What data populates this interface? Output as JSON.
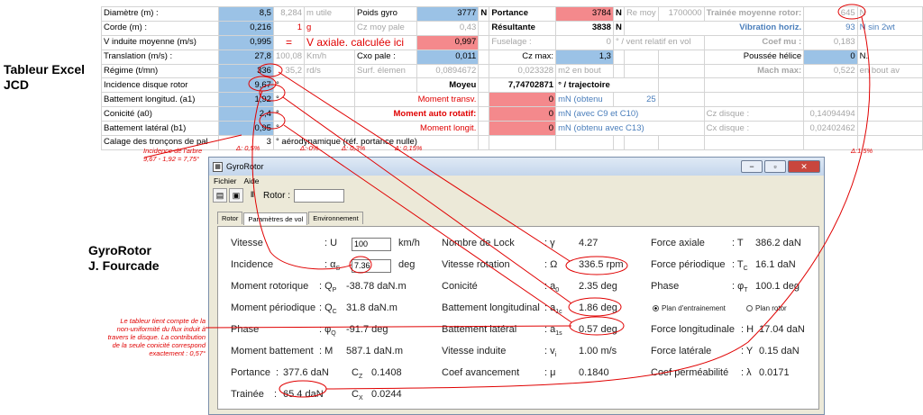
{
  "side": {
    "excel_l1": "Tableur Excel",
    "excel_l2": "JCD",
    "gyro_l1": "GyroRotor",
    "gyro_l2": "J. Fourcade"
  },
  "excel": {
    "r1": [
      "Diamètre  (m) :",
      "8,5",
      "8,284",
      "m utile",
      "Poids gyro",
      "3777",
      "N",
      "Portance",
      "3784",
      "N",
      "Re moy",
      "1700000",
      "Trainée moyenne rotor:",
      "645",
      "N"
    ],
    "r2": [
      "Corde (m) :",
      "0,216",
      "1",
      "g",
      "Cz moy pale",
      "0,43",
      "Résultante",
      "3838",
      "N",
      "Vibration horiz.",
      "93",
      "N sin 2wt"
    ],
    "r3": [
      "V induite  moyenne (m/s)",
      "0,995",
      "=",
      "V axiale. calculée ici",
      "0,997",
      "Fuselage :",
      "0",
      "° / vent relatif en vol",
      "Coef mu :",
      "0,183"
    ],
    "r4": [
      "Translation (m/s) :",
      "27,8",
      "100,08",
      "Km/h",
      "Cxo pale :",
      "0,011",
      "Cz max:",
      "1,3",
      "Poussée hélice",
      "0",
      "N."
    ],
    "r5": [
      "Régime (t/mn)",
      "336",
      "35,2",
      "rd/s",
      "Surf. élemen",
      "0,0894672",
      "0,023328",
      "m2 en  bout",
      "Mach max:",
      "0,522",
      "en bout av"
    ],
    "r6": [
      "Incidence disque rotor",
      "9,67",
      "°",
      "Moyeu",
      "7,74702871",
      "° / trajectoire"
    ],
    "r7": [
      "Battement longitud. (a1)",
      "1,92",
      "°",
      "Moment transv.",
      "0",
      "mN  (obtenu",
      "25"
    ],
    "r8": [
      "Conicité (a0)",
      "2,4",
      "°",
      "Moment auto rotatif:",
      "0",
      "mN  (avec C9 et C10)",
      "Cz disque :",
      "0,14094494"
    ],
    "r9": [
      "Battement latéral  (b1)",
      "0,95",
      "°",
      "Moment longit.",
      "0",
      "mN  (obtenu avec C13)",
      "Cx disque :",
      "0,02402462"
    ],
    "r10": [
      "Calage des tronçons de pal",
      "3",
      "° aérodynamique (réf. portance nulle)"
    ]
  },
  "deltas": [
    "Δ: 0,5%",
    "Δ:-0%",
    "Δ: 0,3%",
    "Δ: 0,15%",
    "Δ:1,5%"
  ],
  "notes": {
    "incidence": "Incidence de l'arbre\n9,67 - 1,92 = 7,75°",
    "flux": "Le tableur tient compte de la\nnon-uniformité du flux induit à\ntravers le disque. La contribution\nde la seule conicité  correspond\nexactement : 0,57°"
  },
  "window": {
    "title": "GyroRotor",
    "menu": [
      "Fichier",
      "Aide"
    ],
    "rotor_label": "Rotor :",
    "tabs": [
      "Rotor",
      "Paramètres de vol",
      "Environnement"
    ],
    "vitesse": {
      "label": "Vitesse",
      "sym": ": U",
      "value": "100",
      "unit": "km/h"
    },
    "incidence": {
      "label": "Incidence",
      "sym": ": α",
      "sub": "S",
      "value": "7.36",
      "unit": "deg"
    },
    "moment_rotorique": {
      "label": "Moment rotorique",
      "sym": ": Q",
      "sub": "P",
      "value": "-38.78 daN.m"
    },
    "moment_periodique": {
      "label": "Moment périodique",
      "sym": ": Q",
      "sub": "C",
      "value": "31.8 daN.m"
    },
    "phase1": {
      "label": "Phase",
      "sym": ": φ",
      "sub": "Q",
      "value": "-91.7 deg"
    },
    "moment_battement": {
      "label": "Moment battement",
      "sym": ": M",
      "value": "587.1 daN.m"
    },
    "portance": {
      "label": "Portance",
      "sym": ":",
      "value": "377.6 daN",
      "cz_sym": "C",
      "cz_sub": "Z",
      "cz_value": "0.1408"
    },
    "trainee": {
      "label": "Trainée",
      "sym": ":",
      "value": "65.4 daN",
      "cx_sym": "C",
      "cx_sub": "X",
      "cx_value": "0.0244"
    },
    "lock": {
      "label": "Nombre de Lock",
      "sym": ": γ",
      "value": "4.27"
    },
    "vrot": {
      "label": "Vitesse rotation",
      "sym": ": Ω",
      "value": "336.5 rpm"
    },
    "conicite": {
      "label": "Conicité",
      "sym": ": a",
      "sub": "0",
      "value": "2.35 deg"
    },
    "batt_long": {
      "label": "Battement longitudinal",
      "sym": ": a",
      "sub": "1c",
      "value": "1.86 deg"
    },
    "batt_lat": {
      "label": "Battement latéral",
      "sym": ": a",
      "sub": "1s",
      "value": "0.57 deg"
    },
    "vind": {
      "label": "Vitesse induite",
      "sym": ": v",
      "sub": "i",
      "value": "1.00 m/s"
    },
    "coef_av": {
      "label": "Coef avancement",
      "sym": ": μ",
      "value": "0.1840"
    },
    "force_axiale": {
      "label": "Force axiale",
      "sym": ": T",
      "value": "386.2 daN"
    },
    "force_per": {
      "label": "Force périodique",
      "sym": ": T",
      "sub": "C",
      "value": "16.1 daN"
    },
    "phase2": {
      "label": "Phase",
      "sym": ": φ",
      "sub": "T",
      "value": "100.1 deg"
    },
    "plan1": "Plan d'entrainement",
    "plan2": "Plan rotor",
    "force_long": {
      "label": "Force longitudinale",
      "sym": ": H",
      "value": "17.04 daN"
    },
    "force_lat": {
      "label": "Force latérale",
      "sym": ": Y",
      "value": "0.15 daN"
    },
    "coef_perm": {
      "label": "Coef perméabilité",
      "sym": ": λ",
      "value": "0.0171"
    }
  },
  "colors": {
    "accent_red": "#e00000",
    "cell_blue": "#9bc2e6",
    "cell_red": "#f4898c"
  }
}
